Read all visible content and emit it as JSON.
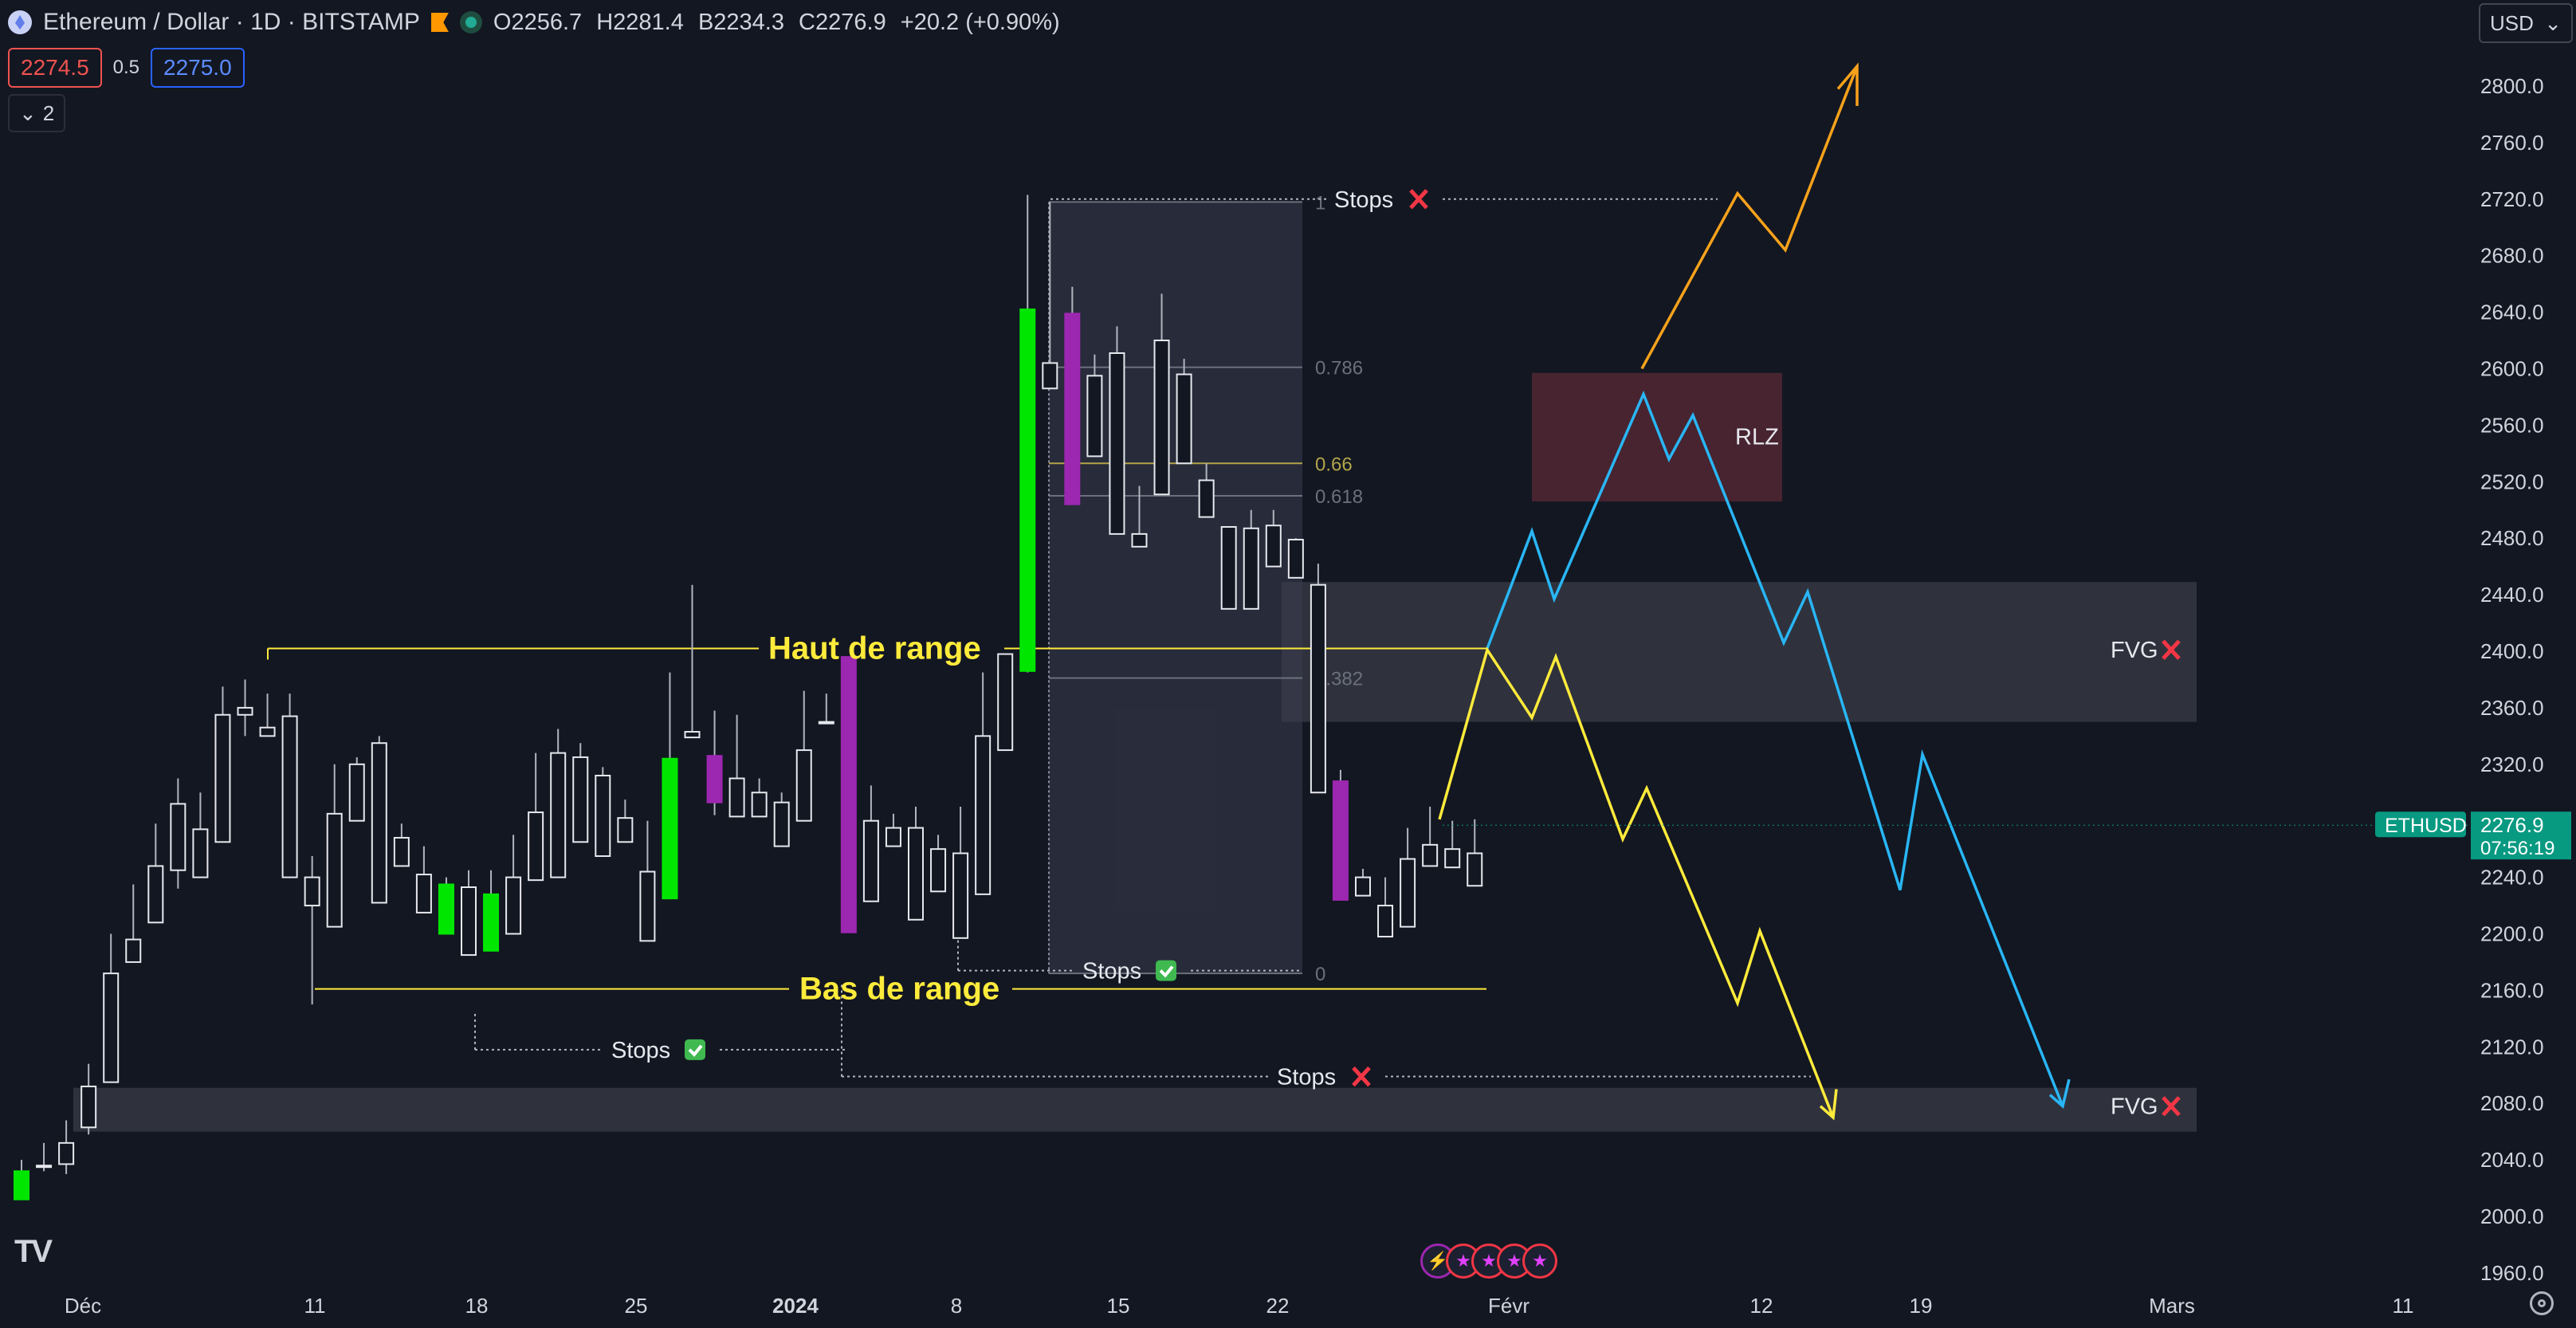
{
  "header": {
    "title": "Ethereum / Dollar · 1D · BITSTAMP",
    "ohlc": [
      {
        "k": "O",
        "v": "2256.7"
      },
      {
        "k": "H",
        "v": "2281.4"
      },
      {
        "k": "B",
        "v": "2234.3"
      },
      {
        "k": "C",
        "v": "2276.9"
      }
    ],
    "change": "+20.2 (+0.90%)",
    "bid": "2274.5",
    "spread": "0.5",
    "ask": "2275.0",
    "indicators_toggle": "2",
    "currency": "USD"
  },
  "price_axis": {
    "ticks": [
      "2800.0",
      "2760.0",
      "2720.0",
      "2680.0",
      "2640.0",
      "2600.0",
      "2560.0",
      "2520.0",
      "2480.0",
      "2440.0",
      "2400.0",
      "2360.0",
      "2320.0",
      "2280.0",
      "2240.0",
      "2200.0",
      "2160.0",
      "2120.0",
      "2080.0",
      "2040.0",
      "2000.0",
      "1960.0"
    ],
    "last_price": "2276.9",
    "countdown": "07:56:19",
    "symbol_tag": "ETHUSD"
  },
  "time_axis": {
    "labels": [
      {
        "text": "Déc",
        "bold": false
      },
      {
        "text": "11",
        "bold": false
      },
      {
        "text": "18",
        "bold": false
      },
      {
        "text": "25",
        "bold": false
      },
      {
        "text": "2024",
        "bold": true
      },
      {
        "text": "8",
        "bold": false
      },
      {
        "text": "15",
        "bold": false
      },
      {
        "text": "22",
        "bold": false
      },
      {
        "text": "Févr",
        "bold": false
      },
      {
        "text": "12",
        "bold": false
      },
      {
        "text": "19",
        "bold": false
      },
      {
        "text": "Mars",
        "bold": false
      },
      {
        "text": "11",
        "bold": false
      }
    ]
  },
  "annotations": {
    "range_high": "Haut de range",
    "range_low": "Bas de range",
    "stops_label": "Stops",
    "fvg_label": "FVG",
    "rlz_label": "RLZ",
    "fib_levels": [
      "1",
      "0.786",
      "0.66",
      "0.618",
      "0.382",
      "0"
    ]
  },
  "chart_data": {
    "type": "candlestick",
    "symbol": "ETHUSD",
    "timeframe": "1D",
    "ylim": [
      1950,
      2830
    ],
    "candles": [
      [
        2032,
        2040,
        2018,
        2012,
        "g"
      ],
      [
        2036,
        2052,
        2032,
        2035,
        "w"
      ],
      [
        2052,
        2068,
        2030,
        2037,
        "w"
      ],
      [
        2092,
        2108,
        2058,
        2063,
        "w"
      ],
      [
        2172,
        2200,
        2152,
        2095,
        "w"
      ],
      [
        2196,
        2235,
        2190,
        2180,
        "w"
      ],
      [
        2248,
        2278,
        2210,
        2208,
        "w"
      ],
      [
        2292,
        2310,
        2232,
        2245,
        "w"
      ],
      [
        2274,
        2300,
        2250,
        2240,
        "w"
      ],
      [
        2355,
        2375,
        2270,
        2265,
        "w"
      ],
      [
        2360,
        2380,
        2340,
        2355,
        "w"
      ],
      [
        2346,
        2370,
        2350,
        2340,
        "w"
      ],
      [
        2354,
        2370,
        2245,
        2240,
        "w"
      ],
      [
        2240,
        2255,
        2150,
        2220,
        "w"
      ],
      [
        2285,
        2320,
        2235,
        2205,
        "w"
      ],
      [
        2320,
        2325,
        2290,
        2280,
        "w"
      ],
      [
        2335,
        2340,
        2238,
        2222,
        "w"
      ],
      [
        2268,
        2278,
        2262,
        2248,
        "w"
      ],
      [
        2242,
        2262,
        2238,
        2215,
        "w"
      ],
      [
        2235,
        2240,
        2210,
        2200,
        "g"
      ],
      [
        2233,
        2245,
        2215,
        2185,
        "w"
      ],
      [
        2228,
        2245,
        2205,
        2188,
        "g"
      ],
      [
        2240,
        2270,
        2210,
        2200,
        "w"
      ],
      [
        2286,
        2328,
        2245,
        2238,
        "w"
      ],
      [
        2328,
        2345,
        2250,
        2240,
        "w"
      ],
      [
        2325,
        2335,
        2275,
        2265,
        "w"
      ],
      [
        2312,
        2318,
        2270,
        2255,
        "w"
      ],
      [
        2282,
        2295,
        2270,
        2265,
        "w"
      ],
      [
        2244,
        2270,
        2280,
        2195,
        "w"
      ],
      [
        2324,
        2385,
        2232,
        2225,
        "g"
      ],
      [
        2343,
        2447,
        2367,
        2339,
        "w"
      ],
      [
        2326,
        2358,
        2284,
        2293,
        "p"
      ],
      [
        2310,
        2355,
        2288,
        2283,
        "w"
      ],
      [
        2300,
        2310,
        2288,
        2283,
        "w"
      ],
      [
        2293,
        2300,
        2278,
        2262,
        "w"
      ],
      [
        2330,
        2372,
        2290,
        2280,
        "w"
      ],
      [
        2350,
        2370,
        2352,
        2350,
        "w"
      ],
      [
        2396,
        2370,
        2208,
        2201,
        "p"
      ],
      [
        2280,
        2305,
        2255,
        2223,
        "w"
      ],
      [
        2275,
        2285,
        2270,
        2262,
        "w"
      ],
      [
        2275,
        2290,
        2240,
        2210,
        "w"
      ],
      [
        2260,
        2270,
        2242,
        2230,
        "w"
      ],
      [
        2257,
        2290,
        2205,
        2197,
        "w"
      ],
      [
        2340,
        2385,
        2250,
        2228,
        "w"
      ],
      [
        2398,
        2390,
        2337,
        2330,
        "w"
      ],
      [
        2642,
        2723,
        2385,
        2386,
        "g"
      ],
      [
        2604,
        2718,
        2625,
        2586,
        "w"
      ],
      [
        2639,
        2658,
        2541,
        2504,
        "p"
      ],
      [
        2595,
        2610,
        2559,
        2538,
        "w"
      ],
      [
        2611,
        2630,
        2519,
        2483,
        "w"
      ],
      [
        2483,
        2517,
        2492,
        2474,
        "w"
      ],
      [
        2620,
        2653,
        2520,
        2511,
        "w"
      ],
      [
        2596,
        2607,
        2537,
        2533,
        "w"
      ],
      [
        2521,
        2530,
        2533,
        2495,
        "w"
      ],
      [
        2488,
        2485,
        2480,
        2430,
        "w"
      ],
      [
        2487,
        2500,
        2460,
        2430,
        "w"
      ],
      [
        2489,
        2500,
        2475,
        2460,
        "w"
      ],
      [
        2479,
        2480,
        2460,
        2452,
        "w"
      ],
      [
        2447,
        2462,
        2310,
        2300,
        "w"
      ],
      [
        2308,
        2316,
        2248,
        2224,
        "p"
      ],
      [
        2240,
        2246,
        2237,
        2227,
        "w"
      ],
      [
        2220,
        2240,
        2227,
        2198,
        "w"
      ],
      [
        2253,
        2275,
        2222,
        2205,
        "w"
      ],
      [
        2263,
        2290,
        2264,
        2248,
        "w"
      ],
      [
        2260,
        2280,
        2253,
        2247,
        "w"
      ],
      [
        2257,
        2281,
        2277,
        2234,
        "w"
      ]
    ],
    "fibonacci": [
      {
        "level": "1",
        "price": 2718
      },
      {
        "level": "0.786",
        "price": 2601
      },
      {
        "level": "0.66",
        "price": 2533
      },
      {
        "level": "0.618",
        "price": 2510
      },
      {
        "level": "0.382",
        "price": 2381
      },
      {
        "level": "0",
        "price": 2172
      }
    ],
    "zones": [
      {
        "label": "FVG",
        "from": 2350,
        "to": 2449
      },
      {
        "label": "FVG",
        "from": 2060,
        "to": 2091
      },
      {
        "label": "RLZ",
        "from": 2506,
        "to": 2597
      }
    ],
    "range": {
      "high": 2402,
      "low": 2161
    },
    "scenarios": {
      "orange": [
        2600,
        2724,
        2684,
        2814
      ],
      "cyan": [
        2402,
        2485,
        2437,
        2582,
        2536,
        2567,
        2406,
        2442,
        2231,
        2327,
        2078
      ],
      "yellow": [
        2281,
        2401,
        2353,
        2396,
        2267,
        2303,
        2151,
        2202,
        2070
      ]
    }
  }
}
